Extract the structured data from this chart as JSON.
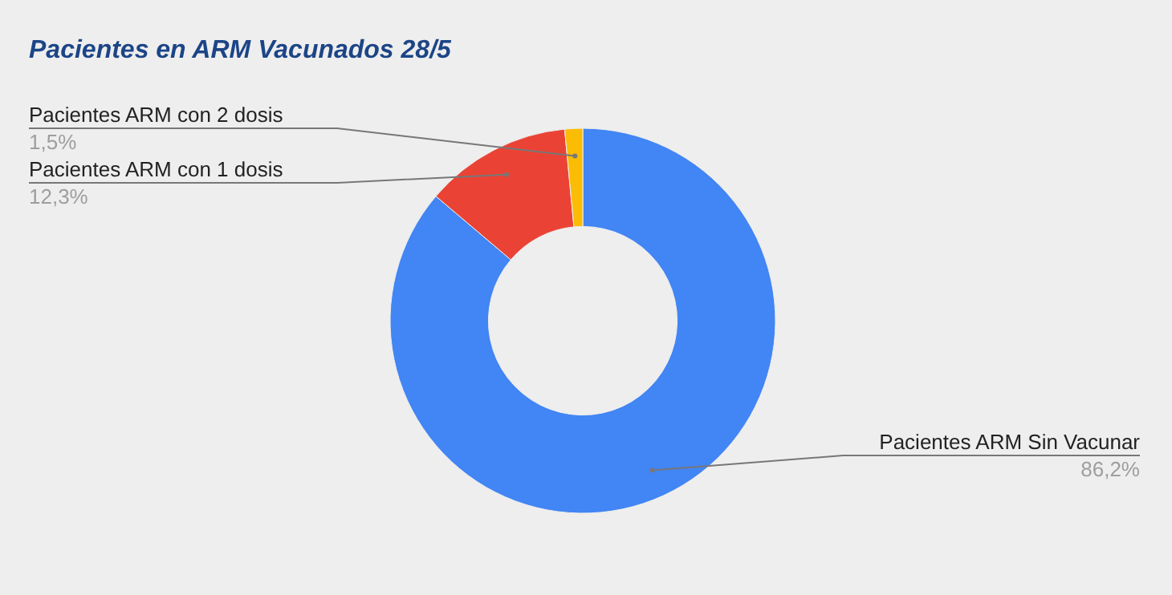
{
  "chart_data": {
    "type": "donut",
    "title": "Pacientes en ARM Vacunados 28/5",
    "categories": [
      "Pacientes ARM Sin Vacunar",
      "Pacientes ARM con 1 dosis",
      "Pacientes ARM con 2 dosis"
    ],
    "values": [
      86.2,
      12.3,
      1.5
    ],
    "colors": [
      "#4285f4",
      "#ea4335",
      "#fbbc04"
    ],
    "value_labels": [
      "86,2%",
      "12,3%",
      "1,5%"
    ]
  }
}
